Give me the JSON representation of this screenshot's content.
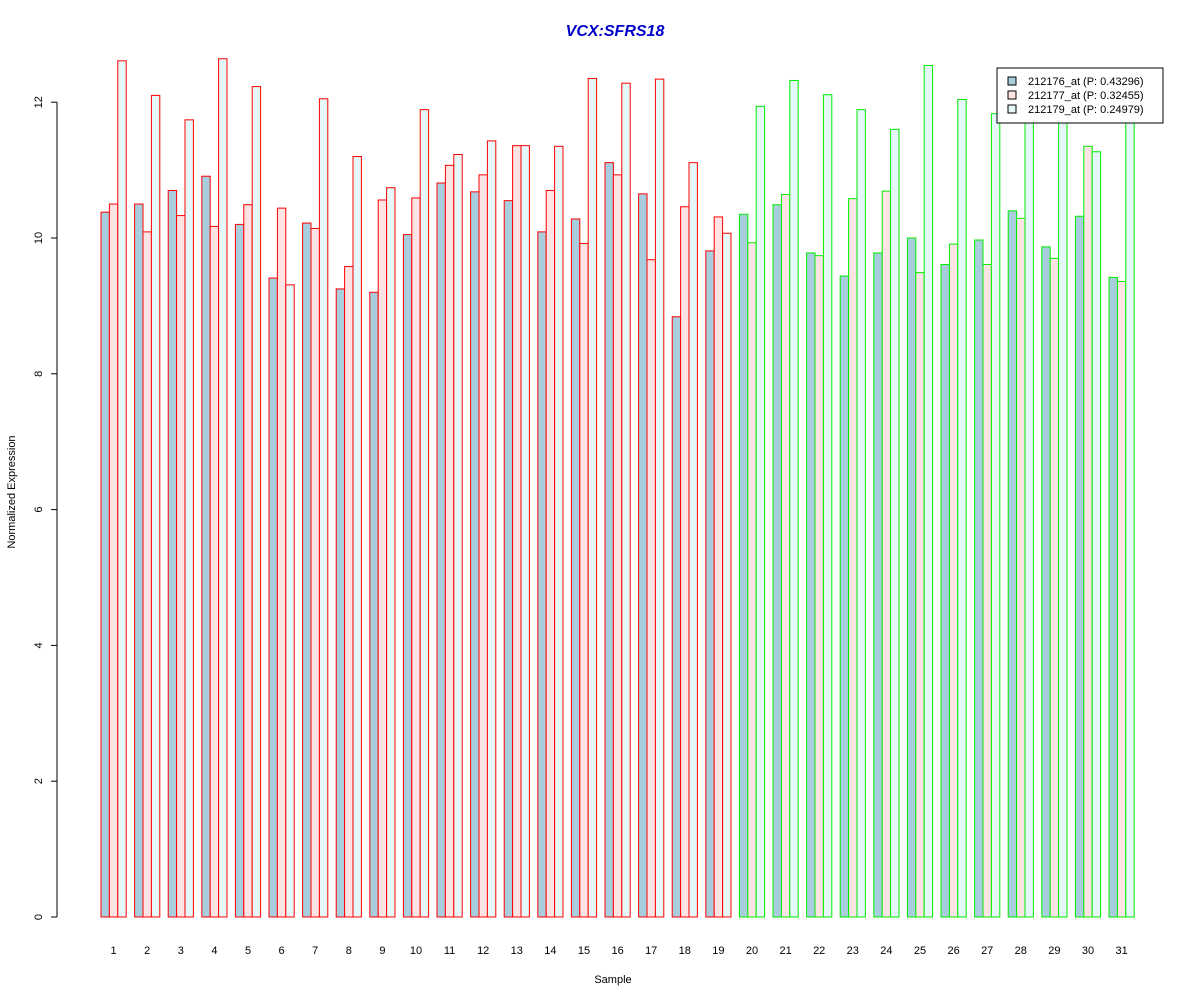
{
  "chart_data": {
    "type": "bar",
    "title": "VCX:SFRS18",
    "title_color": "#0000cc",
    "xlabel": "Sample",
    "ylabel": "Normalized Expression",
    "ylim": [
      0,
      12.6
    ],
    "yticks": [
      0,
      2,
      4,
      6,
      8,
      10,
      12
    ],
    "grid": false,
    "legend_position": "top-right",
    "categories": [
      "1",
      "2",
      "3",
      "4",
      "5",
      "6",
      "7",
      "8",
      "9",
      "10",
      "11",
      "12",
      "13",
      "14",
      "15",
      "16",
      "17",
      "18",
      "19",
      "20",
      "21",
      "22",
      "23",
      "24",
      "25",
      "26",
      "27",
      "28",
      "29",
      "30",
      "31"
    ],
    "group_border_colors": {
      "samples_1_to_19": "#ff0000",
      "samples_20_to_31": "#00ee00"
    },
    "series": [
      {
        "name": "212176_at (P: 0.43296)",
        "fill": "#a8cede",
        "values": [
          10.38,
          10.5,
          10.7,
          10.91,
          10.2,
          9.41,
          10.22,
          9.25,
          9.2,
          10.05,
          10.81,
          10.68,
          10.55,
          10.09,
          10.28,
          11.11,
          10.65,
          8.84,
          9.81,
          10.35,
          10.49,
          9.78,
          9.44,
          9.78,
          10.0,
          9.61,
          9.97,
          10.4,
          9.87,
          10.32,
          9.42
        ]
      },
      {
        "name": "212177_at (P: 0.32455)",
        "fill": "#fde3e3",
        "values": [
          10.5,
          10.09,
          10.33,
          10.17,
          10.49,
          10.44,
          10.14,
          9.58,
          10.56,
          10.59,
          11.07,
          10.93,
          11.36,
          10.7,
          9.92,
          10.93,
          9.68,
          10.46,
          10.31,
          9.93,
          10.64,
          9.74,
          10.58,
          10.69,
          9.49,
          9.91,
          9.61,
          10.29,
          9.7,
          11.35,
          9.36
        ]
      },
      {
        "name": "212179_at (P: 0.24979)",
        "fill": "#e5f7f9",
        "values": [
          12.61,
          12.1,
          11.74,
          12.64,
          12.23,
          9.31,
          12.05,
          11.2,
          10.74,
          11.89,
          11.23,
          11.43,
          11.36,
          11.35,
          12.35,
          12.28,
          12.34,
          11.11,
          10.07,
          11.94,
          12.32,
          12.11,
          11.89,
          11.6,
          12.54,
          12.04,
          11.83,
          11.94,
          11.96,
          11.27,
          12.08
        ]
      }
    ]
  }
}
